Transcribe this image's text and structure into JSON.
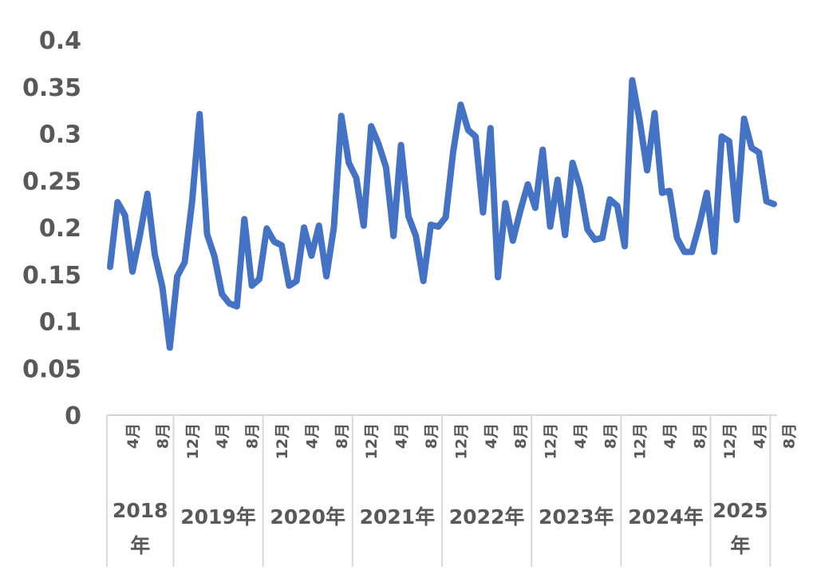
{
  "chart_data": {
    "type": "line",
    "ylim": [
      0,
      0.4
    ],
    "yticks": [
      "0",
      "0.05",
      "0.1",
      "0.15",
      "0.2",
      "0.25",
      "0.3",
      "0.35",
      "0.4"
    ],
    "grid": false,
    "legend": "none",
    "line_color": "#4472C4",
    "axis_color": "#D9D9D9",
    "text_color": "#595959",
    "month_labels": [
      {
        "index": 3,
        "label": "4月"
      },
      {
        "index": 7,
        "label": "8月"
      },
      {
        "index": 11,
        "label": "12月"
      },
      {
        "index": 15,
        "label": "4月"
      },
      {
        "index": 19,
        "label": "8月"
      },
      {
        "index": 23,
        "label": "12月"
      },
      {
        "index": 27,
        "label": "4月"
      },
      {
        "index": 31,
        "label": "8月"
      },
      {
        "index": 35,
        "label": "12月"
      },
      {
        "index": 39,
        "label": "4月"
      },
      {
        "index": 43,
        "label": "8月"
      },
      {
        "index": 47,
        "label": "12月"
      },
      {
        "index": 51,
        "label": "4月"
      },
      {
        "index": 55,
        "label": "8月"
      },
      {
        "index": 59,
        "label": "12月"
      },
      {
        "index": 63,
        "label": "4月"
      },
      {
        "index": 67,
        "label": "8月"
      },
      {
        "index": 71,
        "label": "12月"
      },
      {
        "index": 75,
        "label": "4月"
      },
      {
        "index": 79,
        "label": "8月"
      },
      {
        "index": 83,
        "label": "12月"
      },
      {
        "index": 87,
        "label": "4月"
      },
      {
        "index": 91,
        "label": "8月"
      }
    ],
    "years": [
      {
        "label": "2018年",
        "start": 0,
        "end": 9
      },
      {
        "label": "2019年",
        "start": 9,
        "end": 21
      },
      {
        "label": "2020年",
        "start": 21,
        "end": 33
      },
      {
        "label": "2021年",
        "start": 33,
        "end": 45
      },
      {
        "label": "2022年",
        "start": 45,
        "end": 57
      },
      {
        "label": "2023年",
        "start": 57,
        "end": 69
      },
      {
        "label": "2024年",
        "start": 69,
        "end": 81
      },
      {
        "label": "2025年",
        "start": 81,
        "end": 89
      }
    ],
    "values": [
      0.158,
      0.227,
      0.213,
      0.153,
      0.192,
      0.236,
      0.171,
      0.137,
      0.072,
      0.148,
      0.163,
      0.228,
      0.321,
      0.193,
      0.169,
      0.129,
      0.119,
      0.116,
      0.209,
      0.138,
      0.145,
      0.199,
      0.185,
      0.181,
      0.138,
      0.143,
      0.2,
      0.17,
      0.202,
      0.148,
      0.2,
      0.319,
      0.269,
      0.253,
      0.202,
      0.308,
      0.289,
      0.264,
      0.191,
      0.288,
      0.212,
      0.191,
      0.143,
      0.203,
      0.201,
      0.211,
      0.281,
      0.331,
      0.304,
      0.297,
      0.216,
      0.306,
      0.147,
      0.226,
      0.186,
      0.218,
      0.246,
      0.221,
      0.283,
      0.201,
      0.251,
      0.192,
      0.269,
      0.243,
      0.198,
      0.187,
      0.189,
      0.23,
      0.223,
      0.18,
      0.357,
      0.314,
      0.261,
      0.322,
      0.237,
      0.239,
      0.189,
      0.174,
      0.174,
      0.203,
      0.237,
      0.174,
      0.297,
      0.292,
      0.208,
      0.316,
      0.285,
      0.28,
      0.228,
      0.225
    ]
  }
}
